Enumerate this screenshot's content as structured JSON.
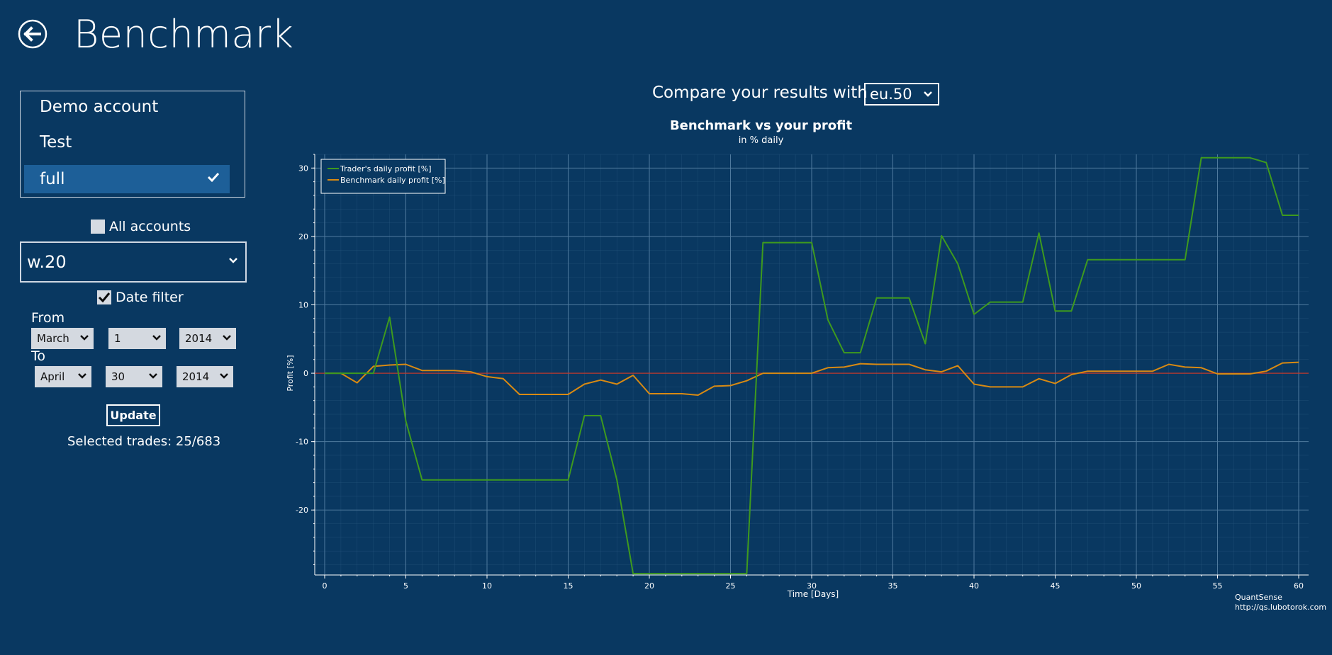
{
  "header": {
    "title": "Benchmark",
    "back_icon": "back-arrow-icon"
  },
  "accounts": {
    "items": [
      {
        "label": "Demo account",
        "selected": false
      },
      {
        "label": "Test",
        "selected": false
      },
      {
        "label": "full",
        "selected": true
      }
    ]
  },
  "all_accounts": {
    "label": "All accounts",
    "checked": false
  },
  "instrument": {
    "value": "w.20"
  },
  "date_filter": {
    "label": "Date filter",
    "checked": true
  },
  "from": {
    "label": "From",
    "month": "March",
    "day": "1",
    "year": "2014"
  },
  "to": {
    "label": "To",
    "month": "April",
    "day": "30",
    "year": "2014"
  },
  "update_button": {
    "label": "Update"
  },
  "selected_trades": "Selected trades: 25/683",
  "compare": {
    "label": "Compare your results with",
    "value": "eu.50"
  },
  "attribution": {
    "line1": "QuantSense",
    "line2": "http://qs.lubotorok.com"
  },
  "colors": {
    "background": "#093861",
    "selection": "#1d5f98",
    "trader_series": "#3e9a1e",
    "benchmark_series": "#d98a12",
    "zero_line": "#d2321e"
  },
  "chart_data": {
    "type": "line",
    "title": "Benchmark vs your profit",
    "subtitle": "in % daily",
    "xlabel": "Time [Days]",
    "ylabel": "Profit [%]",
    "xlim": [
      0,
      60
    ],
    "ylim": [
      -29.5,
      32
    ],
    "xticks": [
      0,
      5,
      10,
      15,
      20,
      25,
      30,
      35,
      40,
      45,
      50,
      55,
      60
    ],
    "yticks": [
      -20,
      -10,
      0,
      10,
      20,
      30
    ],
    "grid": true,
    "legend_position": "top-left",
    "x": [
      0,
      1,
      2,
      3,
      4,
      5,
      6,
      7,
      8,
      9,
      10,
      11,
      12,
      13,
      14,
      15,
      16,
      17,
      18,
      19,
      20,
      21,
      22,
      23,
      24,
      25,
      26,
      27,
      28,
      29,
      30,
      31,
      32,
      33,
      34,
      35,
      36,
      37,
      38,
      39,
      40,
      41,
      42,
      43,
      44,
      45,
      46,
      47,
      48,
      49,
      50,
      51,
      52,
      53,
      54,
      55,
      56,
      57,
      58,
      59,
      60
    ],
    "series": [
      {
        "name": "Trader's daily profit [%]",
        "color": "#3e9a1e",
        "values": [
          0,
          0,
          0,
          0,
          8.2,
          -7,
          -15.6,
          -15.6,
          -15.6,
          -15.6,
          -15.6,
          -15.6,
          -15.6,
          -15.6,
          -15.6,
          -15.6,
          -6.2,
          -6.2,
          -15.6,
          -29.3,
          -29.3,
          -29.3,
          -29.3,
          -29.3,
          -29.3,
          -29.3,
          -29.3,
          19.1,
          19.1,
          19.1,
          19.1,
          7.8,
          3,
          3,
          11,
          11,
          11,
          4.3,
          20.1,
          16,
          8.6,
          10.4,
          10.4,
          10.4,
          20.5,
          9.1,
          9.1,
          16.6,
          16.6,
          16.6,
          16.6,
          16.6,
          16.6,
          16.6,
          31.5,
          31.5,
          31.5,
          31.5,
          30.8,
          23.1,
          23.1
        ]
      },
      {
        "name": "Benchmark daily profit [%]",
        "color": "#d98a12",
        "values": [
          0,
          0,
          -1.4,
          1,
          1.2,
          1.3,
          0.4,
          0.4,
          0.4,
          0.2,
          -0.5,
          -0.8,
          -3.1,
          -3.1,
          -3.1,
          -3.1,
          -1.6,
          -1,
          -1.6,
          -0.3,
          -3,
          -3,
          -3,
          -3.2,
          -1.9,
          -1.8,
          -1.1,
          0,
          0,
          0,
          0,
          0.8,
          0.9,
          1.4,
          1.3,
          1.3,
          1.3,
          0.5,
          0.2,
          1.1,
          -1.6,
          -2,
          -2,
          -2,
          -0.8,
          -1.5,
          -0.2,
          0.3,
          0.3,
          0.3,
          0.3,
          0.3,
          1.3,
          0.9,
          0.8,
          -0.1,
          -0.1,
          -0.1,
          0.3,
          1.5,
          1.6
        ]
      }
    ]
  }
}
